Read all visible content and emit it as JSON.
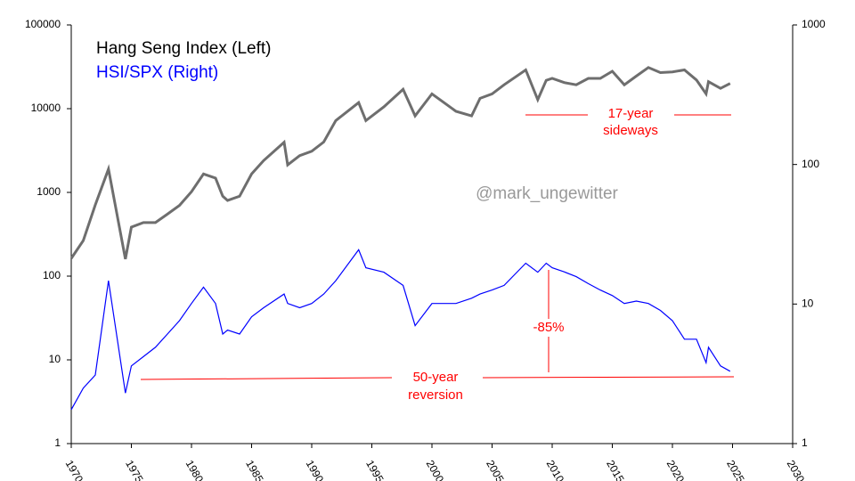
{
  "chart_data": {
    "type": "line",
    "x": [
      1970,
      1971,
      1972,
      1973.1,
      1974.5,
      1975,
      1976,
      1977,
      1978,
      1979,
      1980,
      1981,
      1982,
      1982.6,
      1983,
      1984,
      1985,
      1986,
      1987.7,
      1988,
      1989,
      1990,
      1991,
      1992,
      1993.9,
      1994.5,
      1996,
      1997.6,
      1998.6,
      2000,
      2001,
      2002,
      2003.3,
      2004,
      2005,
      2006,
      2007.8,
      2008.8,
      2009.5,
      2010,
      2011,
      2012,
      2013,
      2014,
      2015,
      2016,
      2017,
      2018,
      2019,
      2020,
      2021,
      2022,
      2022.8,
      2023,
      2024,
      2024.8
    ],
    "series": [
      {
        "name": "Hang Seng Index (Left)",
        "color": "#6e6e6e",
        "axis": "y",
        "values": [
          163,
          266,
          710,
          1900,
          160,
          385,
          436,
          436,
          550,
          700,
          1020,
          1660,
          1480,
          900,
          800,
          900,
          1660,
          2400,
          3970,
          2130,
          2750,
          3100,
          4000,
          7200,
          11800,
          7200,
          10500,
          17000,
          8200,
          15000,
          11800,
          9300,
          8200,
          13300,
          15000,
          19300,
          29000,
          12800,
          21800,
          23000,
          20500,
          19300,
          23000,
          23000,
          28000,
          19300,
          24500,
          31000,
          27000,
          27500,
          29000,
          22000,
          15000,
          21000,
          17500,
          20000
        ]
      },
      {
        "name": "HSI/SPX (Right)",
        "color": "#0000ff",
        "axis": "y2",
        "values": [
          1.75,
          2.5,
          3.1,
          14.7,
          2.3,
          3.6,
          4.2,
          4.9,
          6.1,
          7.6,
          10.1,
          13.2,
          10.1,
          6.1,
          6.5,
          6.1,
          8.1,
          9.4,
          11.8,
          10.1,
          9.4,
          10.1,
          11.8,
          14.7,
          24.5,
          18.2,
          16.9,
          13.6,
          7.0,
          10.1,
          10.1,
          10.1,
          11,
          11.8,
          12.6,
          13.6,
          19.6,
          16.9,
          19.6,
          18.2,
          17,
          15.7,
          14,
          12.6,
          11.5,
          10.1,
          10.5,
          10.1,
          9,
          7.6,
          5.6,
          5.6,
          3.8,
          4.9,
          3.6,
          3.3
        ]
      }
    ],
    "xlim": [
      1970,
      2030
    ],
    "xticks": [
      1970,
      1975,
      1980,
      1985,
      1990,
      1995,
      2000,
      2005,
      2010,
      2015,
      2020,
      2025,
      2030
    ],
    "ylim": [
      1,
      100000
    ],
    "yticks": [
      1,
      10,
      100,
      1000,
      10000,
      100000
    ],
    "y_log": true,
    "y2lim": [
      1,
      1000
    ],
    "y2ticks": [
      1,
      10,
      100,
      1000
    ],
    "y2_log": true,
    "annotations": {
      "sideways": [
        "17-year",
        "sideways"
      ],
      "reversion": [
        "50-year",
        "reversion"
      ],
      "drop": "-85%",
      "watermark": "@mark_ungewitter"
    }
  }
}
